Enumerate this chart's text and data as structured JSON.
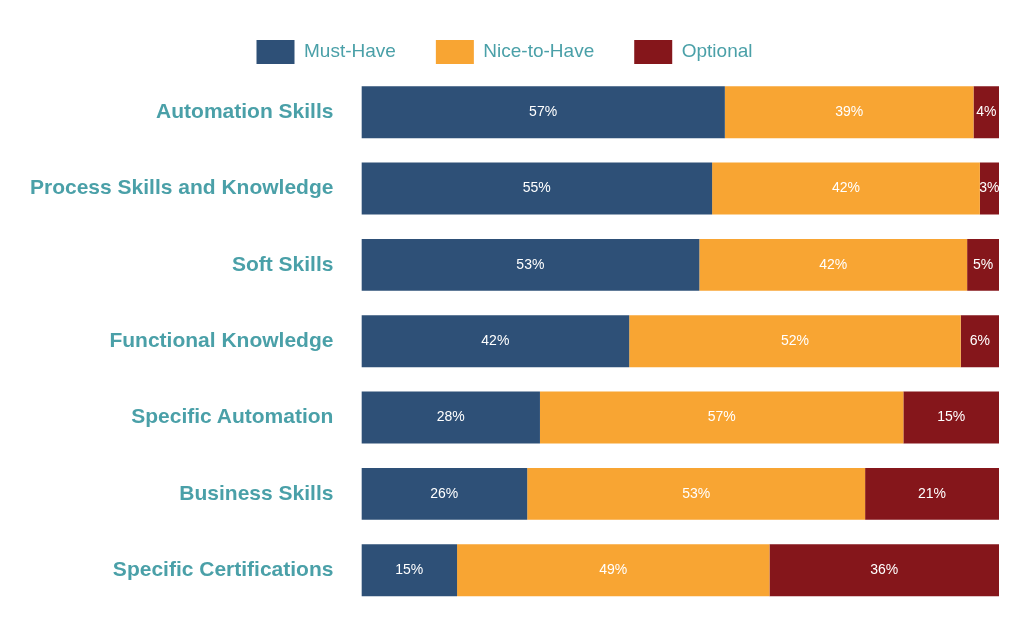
{
  "chart_data": {
    "type": "bar",
    "orientation": "horizontal",
    "stacked": true,
    "legend": "top",
    "grid": false,
    "categories": [
      "Automation Skills",
      "Process Skills and Knowledge",
      "Soft Skills",
      "Functional Knowledge",
      "Specific Automation",
      "Business Skills",
      "Specific Certifications"
    ],
    "series": [
      {
        "name": "Must-Have",
        "color": "#2e5077",
        "values": [
          57,
          55,
          53,
          42,
          28,
          26,
          15
        ],
        "value_labels": [
          "57%",
          "55%",
          "53%",
          "42%",
          "28%",
          "26%",
          "15%"
        ]
      },
      {
        "name": "Nice-to-Have",
        "color": "#f8a533",
        "values": [
          39,
          42,
          42,
          52,
          57,
          53,
          49
        ],
        "value_labels": [
          "39%",
          "42%",
          "42%",
          "52%",
          "57%",
          "53%",
          "49%"
        ]
      },
      {
        "name": "Optional",
        "color": "#85161b",
        "values": [
          4,
          3,
          5,
          6,
          15,
          21,
          36
        ],
        "value_labels": [
          "4%",
          "3%",
          "5%",
          "6%",
          "15%",
          "21%",
          "36%"
        ]
      }
    ]
  }
}
